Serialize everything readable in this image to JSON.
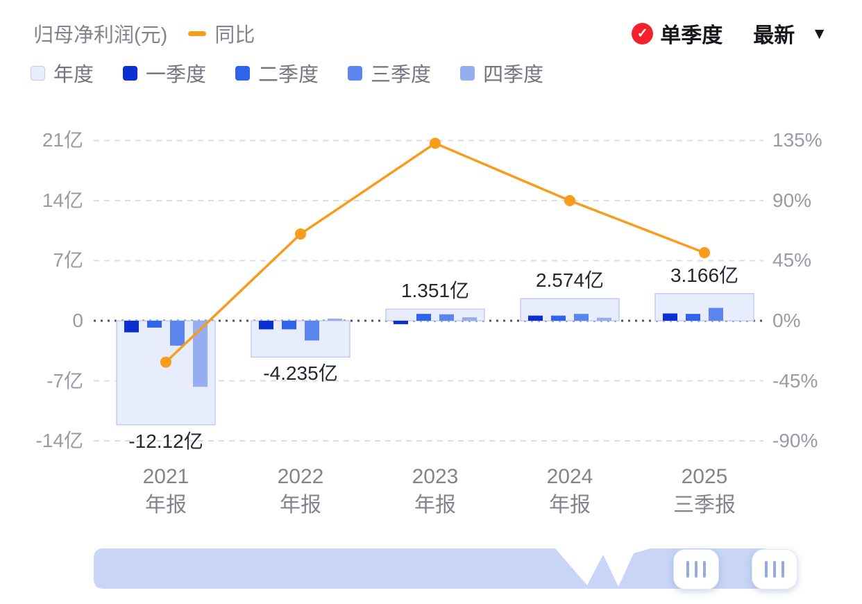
{
  "header": {
    "title": "归母净利润(元)",
    "series_line_label": "同比",
    "mode_selected": "单季度",
    "mode_alt": "最新"
  },
  "icons": {
    "check": "✓",
    "caret": "▼"
  },
  "legend": {
    "items": [
      {
        "label": "年度",
        "color": "#e7edfc",
        "border": "#bfcdf4"
      },
      {
        "label": "一季度",
        "color": "#0b2fd0",
        "border": "#0b2fd0"
      },
      {
        "label": "二季度",
        "color": "#2f63e9",
        "border": "#2f63e9"
      },
      {
        "label": "三季度",
        "color": "#5b86ee",
        "border": "#5b86ee"
      },
      {
        "label": "四季度",
        "color": "#96adf0",
        "border": "#96adf0"
      }
    ]
  },
  "chart_data": {
    "type": "bar",
    "title": "归母净利润(元)",
    "grid": true,
    "categories": [
      {
        "year": "2021",
        "report": "年报"
      },
      {
        "year": "2022",
        "report": "年报"
      },
      {
        "year": "2023",
        "report": "年报"
      },
      {
        "year": "2024",
        "report": "年报"
      },
      {
        "year": "2025",
        "report": "三季报"
      }
    ],
    "left_axis": {
      "unit": "亿",
      "ticks": [
        "21亿",
        "14亿",
        "7亿",
        "0",
        "-7亿",
        "-14亿"
      ],
      "values": [
        21,
        14,
        7,
        0,
        -7,
        -14
      ],
      "ylim": [
        -17.5,
        24.5
      ]
    },
    "right_axis": {
      "unit": "%",
      "ticks": [
        "135%",
        "90%",
        "45%",
        "0%",
        "-45%",
        "-90%"
      ],
      "values": [
        135,
        90,
        45,
        0,
        -45,
        -90
      ],
      "ylim": [
        -112.5,
        157.5
      ]
    },
    "annual_series": {
      "name": "年度",
      "values_yi": [
        -12.12,
        -4.235,
        1.351,
        2.574,
        3.166
      ],
      "labels": [
        "-12.12亿",
        "-4.235亿",
        "1.351亿",
        "2.574亿",
        "3.166亿"
      ]
    },
    "quarterly_series": [
      {
        "name": "一季度",
        "values_yi": [
          -1.35,
          -1.0,
          -0.4,
          0.6,
          0.85
        ]
      },
      {
        "name": "二季度",
        "values_yi": [
          -0.8,
          -1.0,
          0.8,
          0.6,
          0.8
        ]
      },
      {
        "name": "三季度",
        "values_yi": [
          -2.9,
          -2.3,
          0.75,
          0.8,
          1.5
        ]
      },
      {
        "name": "四季度",
        "values_yi": [
          -7.7,
          0.25,
          0.4,
          0.35,
          null
        ]
      }
    ],
    "yoy_line": {
      "name": "同比",
      "values_pct": [
        -31,
        65,
        133,
        90,
        51
      ],
      "color": "#f89c1c"
    }
  }
}
